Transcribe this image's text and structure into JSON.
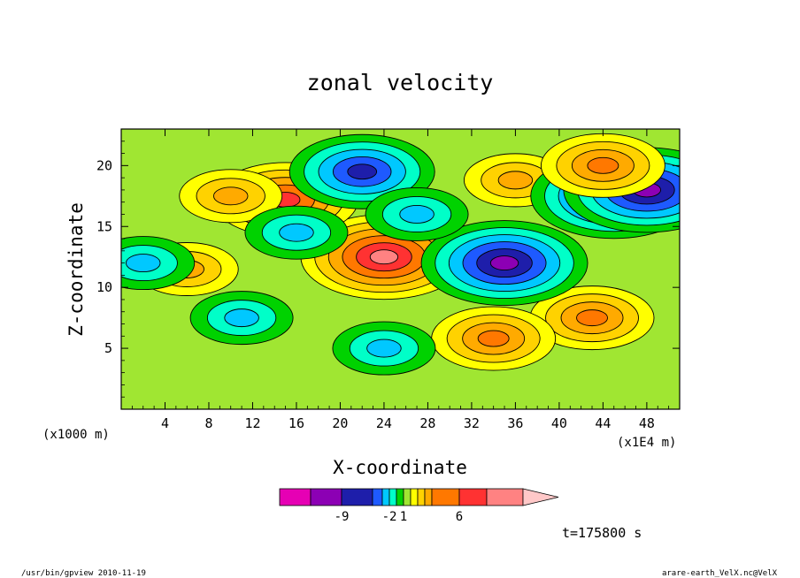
{
  "chart_data": {
    "type": "heatmap",
    "title": "zonal velocity",
    "xlabel": "X-coordinate",
    "ylabel": "Z-coordinate",
    "x_unit": "(x1E4 m)",
    "y_unit": "(x1000 m)",
    "xlim": [
      0,
      51
    ],
    "ylim": [
      0,
      23
    ],
    "x_ticks": [
      "4",
      "8",
      "12",
      "16",
      "20",
      "24",
      "28",
      "32",
      "36",
      "40",
      "44",
      "48"
    ],
    "y_ticks": [
      "5",
      "10",
      "15",
      "20"
    ],
    "time_label": "t=175800 s",
    "colorbar": {
      "colors": [
        "#e600b4",
        "#8c00b4",
        "#1e1eaa",
        "#1e5aff",
        "#00c8ff",
        "#00ffc8",
        "#00d200",
        "#a0e632",
        "#ffff00",
        "#ffd200",
        "#ffaa00",
        "#ff7800",
        "#ff3232",
        "#ff8282",
        "#ffc8c8"
      ],
      "tick_labels": [
        "-9",
        "-2",
        "1",
        "6"
      ],
      "tick_after_band": [
        1,
        4,
        6,
        11
      ]
    },
    "field_features": [
      {
        "x": 24,
        "z": 12.5,
        "value": 6
      },
      {
        "x": 15,
        "z": 17.2,
        "value": 5
      },
      {
        "x": 43,
        "z": 7.5,
        "value": 4
      },
      {
        "x": 34,
        "z": 5.8,
        "value": 3.5
      },
      {
        "x": 36,
        "z": 18.8,
        "value": 3
      },
      {
        "x": 10,
        "z": 17.5,
        "value": 3
      },
      {
        "x": 45,
        "z": 17.5,
        "value": -7
      },
      {
        "x": 48,
        "z": 18,
        "value": -6
      },
      {
        "x": 35,
        "z": 12,
        "value": -6
      },
      {
        "x": 22,
        "z": 19.5,
        "value": -5
      },
      {
        "x": 24,
        "z": 5,
        "value": -3
      },
      {
        "x": 16,
        "z": 14.5,
        "value": -3
      },
      {
        "x": 11,
        "z": 7.5,
        "value": -3
      },
      {
        "x": 44,
        "z": 20,
        "value": 4
      },
      {
        "x": 6,
        "z": 11.5,
        "value": 3
      },
      {
        "x": 2,
        "z": 12,
        "value": -3
      },
      {
        "x": 27,
        "z": 16,
        "value": -3
      }
    ]
  },
  "footer": {
    "left": "/usr/bin/gpview   2010-11-19",
    "right": "arare-earth_VelX.nc@VelX"
  }
}
